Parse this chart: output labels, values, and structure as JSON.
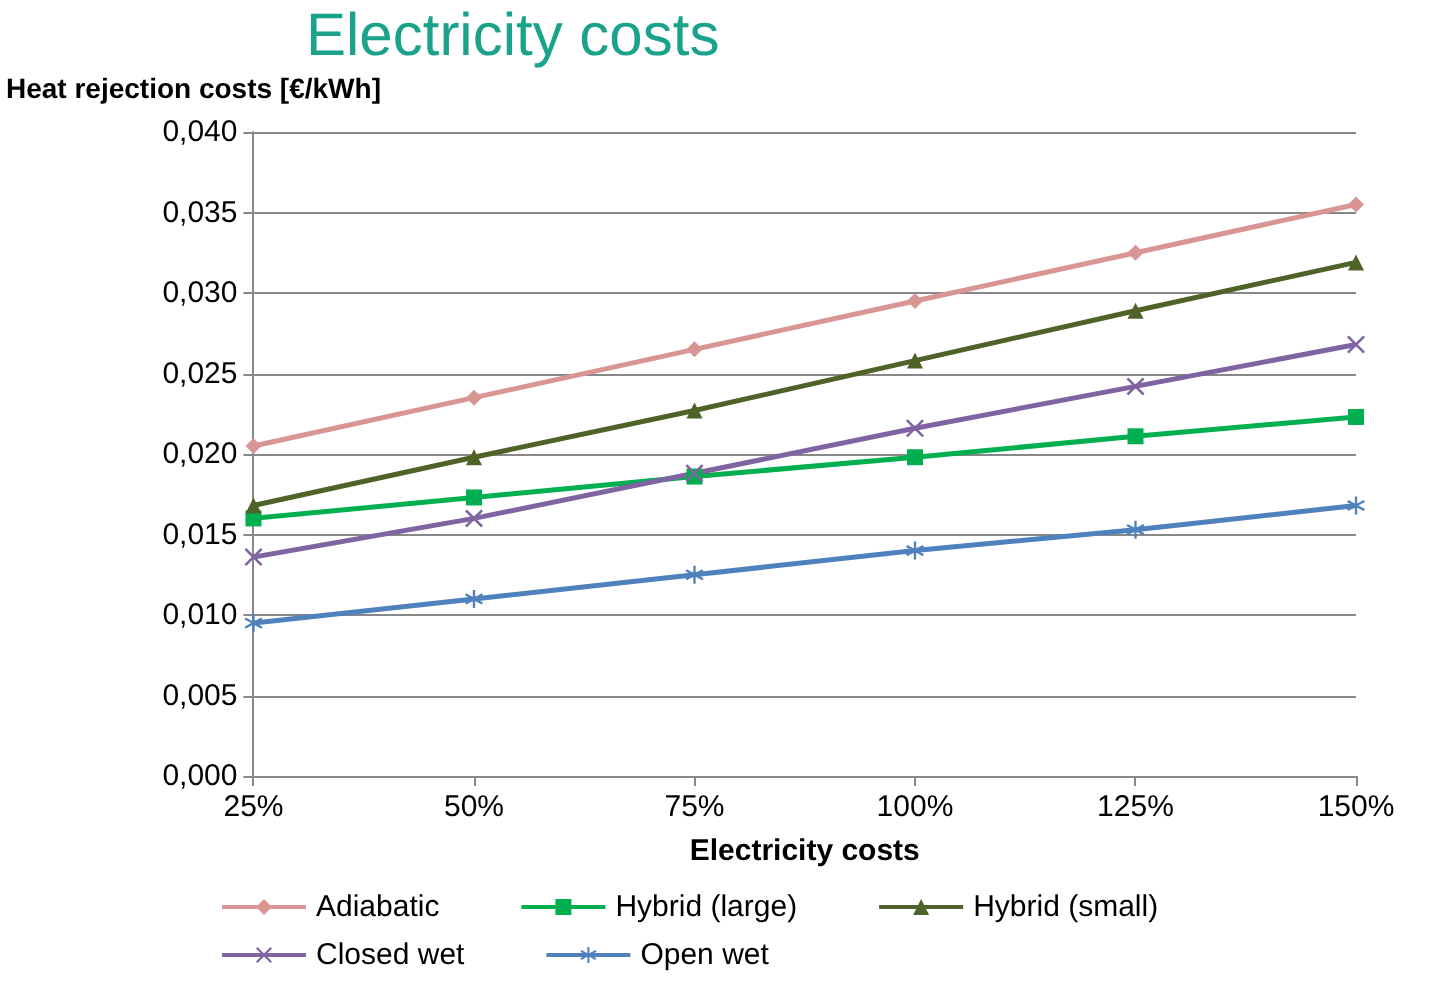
{
  "chart_data": {
    "type": "line",
    "title": "Electricity costs",
    "ylabel": "Heat rejection costs [€/kWh]",
    "xlabel": "Electricity costs",
    "categories": [
      "25%",
      "50%",
      "75%",
      "100%",
      "125%",
      "150%"
    ],
    "series": [
      {
        "name": "Adiabatic",
        "color": "#d99594",
        "marker": "diamond",
        "values": [
          0.0205,
          0.0235,
          0.0265,
          0.0295,
          0.0325,
          0.0355
        ]
      },
      {
        "name": "Hybrid (large)",
        "color": "#00b050",
        "marker": "square",
        "values": [
          0.016,
          0.0173,
          0.0186,
          0.0198,
          0.0211,
          0.0223
        ]
      },
      {
        "name": "Hybrid (small)",
        "color": "#4f6228",
        "marker": "triangle",
        "values": [
          0.0168,
          0.0198,
          0.0227,
          0.0258,
          0.0289,
          0.0319
        ]
      },
      {
        "name": "Closed wet",
        "color": "#8064a2",
        "marker": "cross",
        "values": [
          0.0136,
          0.016,
          0.0188,
          0.0216,
          0.0242,
          0.0268
        ]
      },
      {
        "name": "Open wet",
        "color": "#4f81bd",
        "marker": "star",
        "values": [
          0.0095,
          0.011,
          0.0125,
          0.014,
          0.0153,
          0.0168
        ]
      }
    ],
    "ylim": [
      0,
      0.04
    ],
    "yticks": [
      {
        "value": 0,
        "label": "0,000"
      },
      {
        "value": 0.005,
        "label": "0,005"
      },
      {
        "value": 0.01,
        "label": "0,010"
      },
      {
        "value": 0.015,
        "label": "0,015"
      },
      {
        "value": 0.02,
        "label": "0,020"
      },
      {
        "value": 0.025,
        "label": "0,025"
      },
      {
        "value": 0.03,
        "label": "0,030"
      },
      {
        "value": 0.035,
        "label": "0,035"
      },
      {
        "value": 0.04,
        "label": "0,040"
      }
    ],
    "grid": "y",
    "legend": "bottom",
    "line_style": "solid"
  }
}
